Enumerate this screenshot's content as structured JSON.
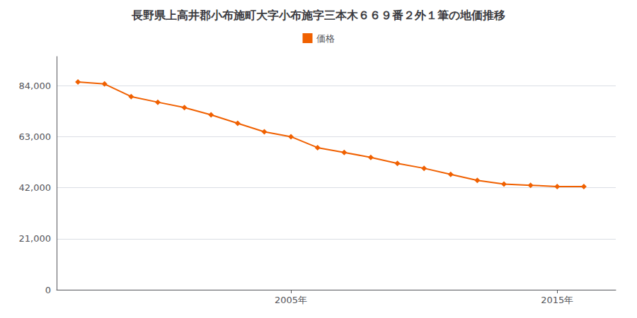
{
  "chart_data": {
    "type": "line",
    "title": "長野県上高井郡小布施町大字小布施字三本木６６９番２外１筆の地価推移",
    "x": [
      1997,
      1998,
      1999,
      2000,
      2001,
      2002,
      2003,
      2004,
      2005,
      2006,
      2007,
      2008,
      2009,
      2010,
      2011,
      2012,
      2013,
      2014,
      2015,
      2016
    ],
    "series": [
      {
        "name": "価格",
        "color": "#F06000",
        "marker": "diamond",
        "values": [
          85500,
          84700,
          79500,
          77200,
          75000,
          72000,
          68500,
          65000,
          63000,
          58500,
          56500,
          54500,
          52000,
          50000,
          47500,
          45000,
          43500,
          43000,
          42500,
          42500
        ]
      }
    ],
    "xlim": [
      1996.2,
      2017.2
    ],
    "xticks": [
      {
        "value": 2005,
        "label": "2005年"
      },
      {
        "value": 2015,
        "label": "2015年"
      }
    ],
    "ylim": [
      0,
      96000
    ],
    "yticks": [
      0,
      {
        "value": 21000,
        "label": "21,000"
      },
      {
        "value": 42000,
        "label": "42,000"
      },
      {
        "value": 63000,
        "label": "63,000"
      },
      {
        "value": 84000,
        "label": "84,000"
      }
    ],
    "grid": true,
    "legend": "top"
  }
}
